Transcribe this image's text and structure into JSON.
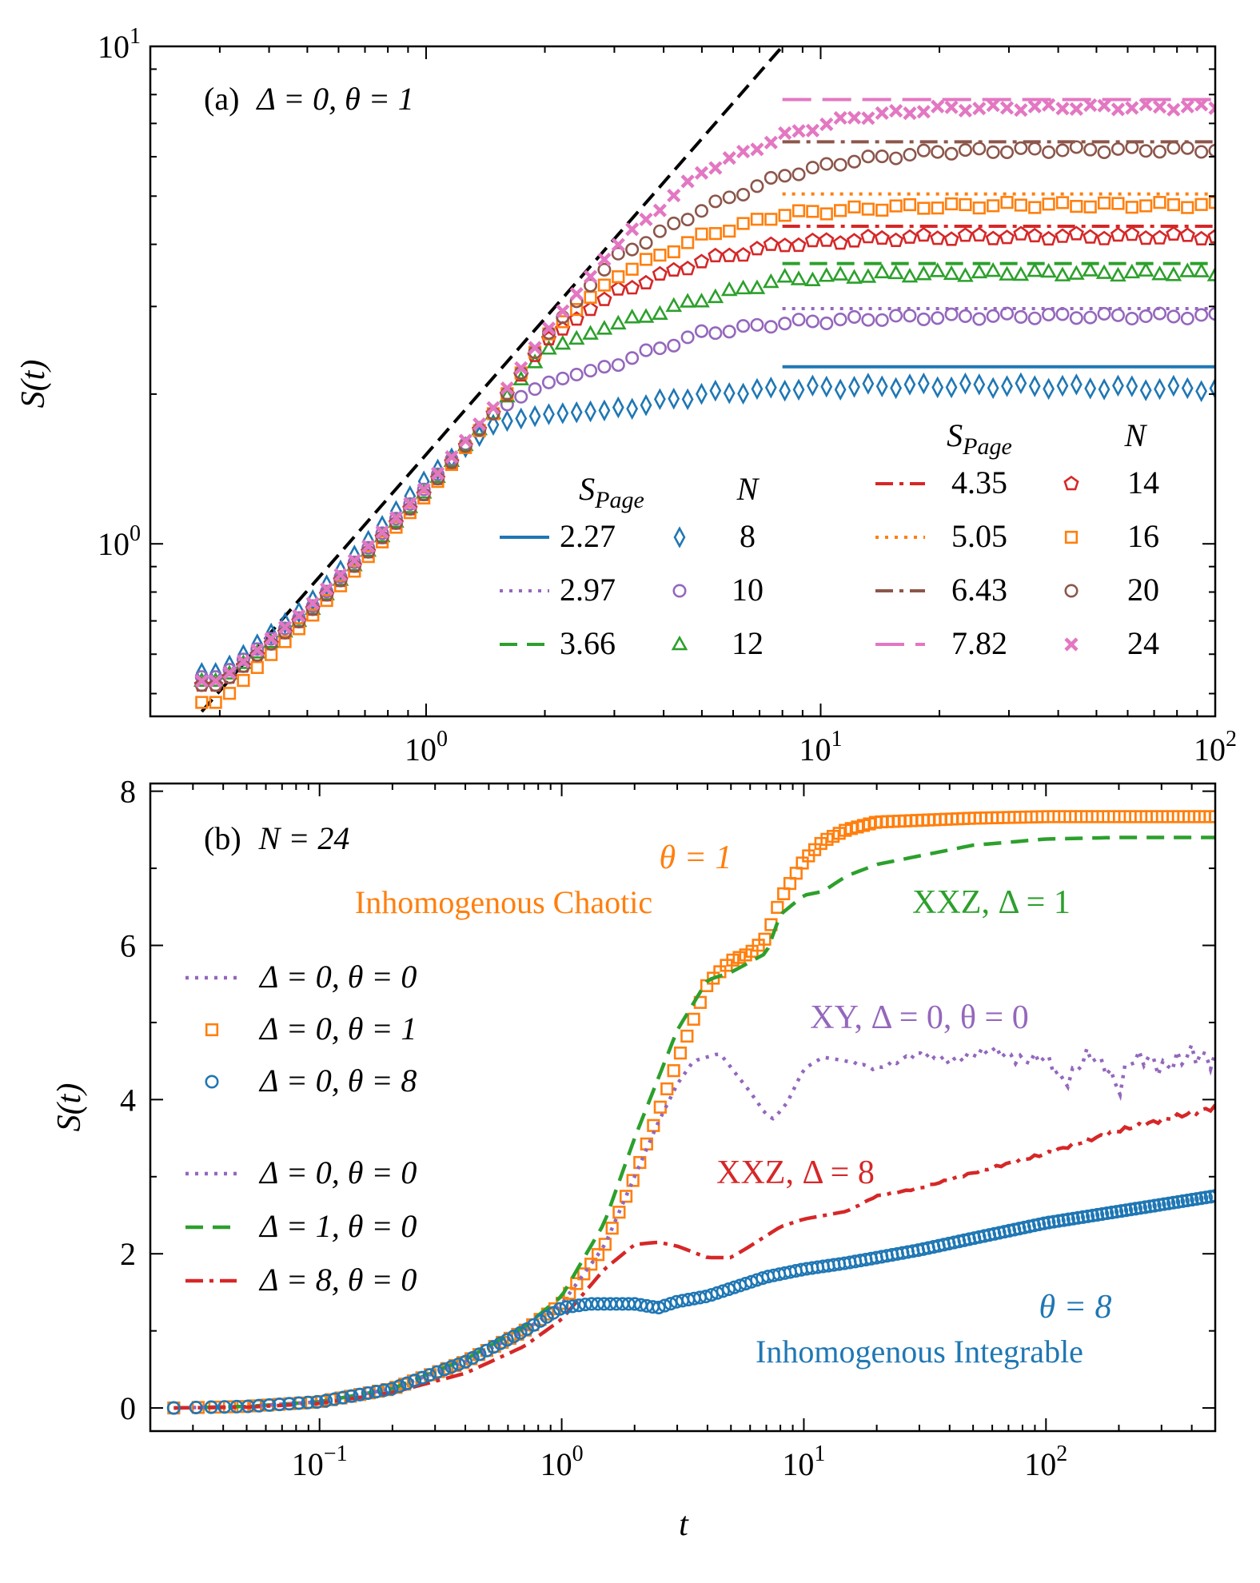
{
  "chart_data": [
    {
      "type": "scatter",
      "panel": "a",
      "title": "(a) Δ = 0, θ = 1",
      "title_parts": {
        "prefix": "(a)",
        "math": "Δ = 0, θ = 1"
      },
      "xlabel": "",
      "ylabel": "S(t)",
      "xscale": "log",
      "yscale": "log",
      "xlim": [
        0.2,
        100
      ],
      "ylim": [
        0.45,
        10
      ],
      "xticks": [
        {
          "base": "10",
          "exp": "0",
          "value": 1
        },
        {
          "base": "10",
          "exp": "1",
          "value": 10
        },
        {
          "base": "10",
          "exp": "2",
          "value": 100
        }
      ],
      "yticks": [
        {
          "base": "10",
          "exp": "0",
          "value": 1
        },
        {
          "base": "10",
          "exp": "1",
          "value": 10
        }
      ],
      "grid": false,
      "legend_placement": "bottom-right",
      "legend_headers": {
        "page": "S",
        "page_sub": "Page",
        "n": "N"
      },
      "guide_line": {
        "style": "dashed",
        "color": "#000000",
        "x": [
          0.27,
          8.0
        ],
        "y": [
          0.46,
          10.0
        ]
      },
      "series": [
        {
          "N": "8",
          "page": "2.27",
          "page_value": 2.27,
          "color": "#1f77b4",
          "marker": "diamond",
          "line": "solid",
          "x": [
            0.3,
            0.5,
            1.0,
            1.5,
            2.0,
            3.0,
            5.0,
            8.0,
            15.0,
            30.0,
            60.0,
            100.0
          ],
          "y": [
            0.55,
            0.75,
            1.35,
            1.75,
            1.82,
            1.86,
            2.0,
            2.05,
            2.08,
            2.08,
            2.06,
            2.05
          ]
        },
        {
          "N": "10",
          "page": "2.97",
          "page_value": 2.97,
          "color": "#9467bd",
          "marker": "circle",
          "line": "dotted",
          "x": [
            0.3,
            0.5,
            1.0,
            1.5,
            2.0,
            3.0,
            5.0,
            8.0,
            15.0,
            30.0,
            60.0,
            100.0
          ],
          "y": [
            0.54,
            0.73,
            1.3,
            1.85,
            2.1,
            2.3,
            2.65,
            2.78,
            2.85,
            2.87,
            2.87,
            2.87
          ]
        },
        {
          "N": "12",
          "page": "3.66",
          "page_value": 3.66,
          "color": "#2ca02c",
          "marker": "triangle",
          "line": "dashed",
          "x": [
            0.3,
            0.5,
            1.0,
            1.5,
            2.0,
            3.0,
            5.0,
            8.0,
            15.0,
            30.0,
            60.0,
            100.0
          ],
          "y": [
            0.53,
            0.72,
            1.28,
            1.85,
            2.45,
            2.75,
            3.1,
            3.4,
            3.48,
            3.5,
            3.5,
            3.5
          ]
        },
        {
          "N": "14",
          "page": "4.35",
          "page_value": 4.35,
          "color": "#d62728",
          "marker": "pentagon",
          "line": "dashdot",
          "x": [
            0.3,
            0.5,
            1.0,
            1.5,
            2.0,
            3.0,
            5.0,
            8.0,
            15.0,
            30.0,
            60.0,
            100.0
          ],
          "y": [
            0.52,
            0.72,
            1.27,
            1.85,
            2.55,
            3.2,
            3.7,
            4.0,
            4.12,
            4.15,
            4.15,
            4.15
          ]
        },
        {
          "N": "16",
          "page": "5.05",
          "page_value": 5.05,
          "color": "#ff7f0e",
          "marker": "square",
          "line": "dotted",
          "x": [
            0.3,
            0.5,
            1.0,
            1.5,
            2.0,
            3.0,
            5.0,
            8.0,
            15.0,
            30.0,
            60.0,
            100.0
          ],
          "y": [
            0.48,
            0.7,
            1.25,
            1.85,
            2.6,
            3.45,
            4.15,
            4.6,
            4.75,
            4.8,
            4.8,
            4.8
          ]
        },
        {
          "N": "20",
          "page": "6.43",
          "page_value": 6.43,
          "color": "#8c564b",
          "marker": "circle",
          "line": "dashdot",
          "x": [
            0.3,
            0.5,
            1.0,
            1.5,
            2.0,
            3.0,
            5.0,
            8.0,
            12.0,
            20.0,
            40.0,
            100.0
          ],
          "y": [
            0.52,
            0.72,
            1.27,
            1.85,
            2.6,
            3.75,
            4.7,
            5.5,
            5.9,
            6.15,
            6.2,
            6.2
          ]
        },
        {
          "N": "24",
          "page": "7.82",
          "page_value": 7.82,
          "color": "#e377c2",
          "marker": "x",
          "line": "longdash",
          "x": [
            0.3,
            0.5,
            1.0,
            1.5,
            2.0,
            3.0,
            5.0,
            8.0,
            12.0,
            20.0,
            40.0,
            100.0
          ],
          "y": [
            0.53,
            0.74,
            1.3,
            1.9,
            2.65,
            3.95,
            5.6,
            6.6,
            7.2,
            7.5,
            7.55,
            7.55
          ]
        }
      ]
    },
    {
      "type": "line",
      "panel": "b",
      "title": "(b) N = 24",
      "title_parts": {
        "prefix": "(b)",
        "math": "N = 24"
      },
      "xlabel": "t",
      "ylabel": "S(t)",
      "xscale": "log",
      "yscale": "linear",
      "xlim": [
        0.02,
        500
      ],
      "ylim": [
        -0.3,
        8.1
      ],
      "xticks": [
        {
          "base": "10",
          "exp": "−1",
          "value": 0.1
        },
        {
          "base": "10",
          "exp": "0",
          "value": 1
        },
        {
          "base": "10",
          "exp": "1",
          "value": 10
        },
        {
          "base": "10",
          "exp": "2",
          "value": 100
        }
      ],
      "yticks": [
        {
          "label": "0",
          "value": 0
        },
        {
          "label": "2",
          "value": 2
        },
        {
          "label": "4",
          "value": 4
        },
        {
          "label": "6",
          "value": 6
        },
        {
          "label": "8",
          "value": 8
        }
      ],
      "grid": false,
      "legend_placement": "left",
      "legend_entries": [
        {
          "label": "Δ = 0,  θ = 0",
          "color": "#9467bd",
          "style": "dotted"
        },
        {
          "label": "Δ = 0,  θ = 1",
          "color": "#ff7f0e",
          "style": "square"
        },
        {
          "label": "Δ = 0,  θ = 8",
          "color": "#1f77b4",
          "style": "circle"
        },
        {
          "label": "Δ = 0,  θ = 0",
          "color": "#9467bd",
          "style": "dotted"
        },
        {
          "label": "Δ = 1,  θ = 0",
          "color": "#2ca02c",
          "style": "dashed"
        },
        {
          "label": "Δ = 8,  θ = 0",
          "color": "#d62728",
          "style": "dashdot"
        }
      ],
      "annotations": [
        {
          "text": "θ = 1",
          "color": "#ff7f0e"
        },
        {
          "text": "Inhomogenous Chaotic",
          "color": "#ff7f0e"
        },
        {
          "text": "XXZ, Δ = 1",
          "color": "#2ca02c"
        },
        {
          "text": "XY, Δ = 0, θ = 0",
          "color": "#9467bd"
        },
        {
          "text": "XXZ, Δ = 8",
          "color": "#d62728"
        },
        {
          "text": "θ = 8",
          "color": "#1f77b4"
        },
        {
          "text": "Inhomogenous Integrable",
          "color": "#1f77b4"
        }
      ],
      "series": [
        {
          "id": "chaotic",
          "color": "#ff7f0e",
          "style": "square",
          "x": [
            0.025,
            0.05,
            0.1,
            0.2,
            0.4,
            0.7,
            1.0,
            1.5,
            2.0,
            3.0,
            4.0,
            5.0,
            6.0,
            7.0,
            8.0,
            10.0,
            12.0,
            15.0,
            20.0,
            50.0,
            100.0,
            200.0,
            500.0
          ],
          "y": [
            0.0,
            0.02,
            0.08,
            0.25,
            0.6,
            1.0,
            1.35,
            2.1,
            3.0,
            4.5,
            5.5,
            5.8,
            5.9,
            6.1,
            6.6,
            7.1,
            7.35,
            7.5,
            7.6,
            7.65,
            7.67,
            7.67,
            7.67
          ]
        },
        {
          "id": "xxz1",
          "color": "#2ca02c",
          "style": "dashed",
          "x": [
            0.025,
            0.05,
            0.1,
            0.2,
            0.4,
            0.7,
            1.0,
            1.5,
            2.0,
            3.0,
            4.0,
            5.0,
            7.0,
            8.0,
            10.0,
            12.0,
            15.0,
            20.0,
            50.0,
            100.0,
            200.0,
            500.0
          ],
          "y": [
            0.0,
            0.02,
            0.08,
            0.25,
            0.63,
            1.05,
            1.45,
            2.4,
            3.5,
            4.9,
            5.55,
            5.65,
            5.9,
            6.4,
            6.65,
            6.7,
            6.9,
            7.05,
            7.3,
            7.38,
            7.4,
            7.4
          ]
        },
        {
          "id": "xy",
          "color": "#9467bd",
          "style": "dotted",
          "x": [
            0.025,
            0.05,
            0.1,
            0.2,
            0.4,
            0.7,
            1.0,
            1.5,
            2.0,
            2.5,
            3.0,
            3.5,
            4.5,
            6.0,
            7.0,
            7.5,
            8.5,
            10.0,
            12.0,
            15.0,
            20.0,
            30.0,
            40.0,
            60.0,
            80.0,
            100.0,
            120.0,
            150.0,
            180.0,
            200.0,
            220.0,
            260.0,
            300.0,
            400.0,
            500.0
          ],
          "y": [
            0.0,
            0.02,
            0.08,
            0.25,
            0.6,
            1.0,
            1.35,
            2.1,
            3.0,
            3.7,
            4.2,
            4.5,
            4.6,
            4.1,
            3.8,
            3.75,
            3.95,
            4.4,
            4.55,
            4.5,
            4.4,
            4.6,
            4.5,
            4.65,
            4.5,
            4.55,
            4.2,
            4.6,
            4.4,
            4.1,
            4.5,
            4.55,
            4.4,
            4.6,
            4.5
          ]
        },
        {
          "id": "xxz8",
          "color": "#d62728",
          "style": "dashdot",
          "x": [
            0.025,
            0.05,
            0.1,
            0.2,
            0.4,
            0.7,
            1.0,
            1.5,
            2.0,
            2.5,
            3.0,
            4.0,
            5.0,
            6.0,
            8.0,
            10.0,
            15.0,
            20.0,
            30.0,
            50.0,
            100.0,
            200.0,
            500.0
          ],
          "y": [
            0.0,
            0.01,
            0.06,
            0.2,
            0.45,
            0.8,
            1.15,
            1.8,
            2.12,
            2.15,
            2.1,
            1.95,
            1.95,
            2.1,
            2.35,
            2.45,
            2.55,
            2.75,
            2.85,
            3.05,
            3.3,
            3.6,
            3.9
          ]
        },
        {
          "id": "integrable",
          "color": "#1f77b4",
          "style": "circle",
          "x": [
            0.025,
            0.05,
            0.1,
            0.2,
            0.4,
            0.7,
            1.0,
            1.3,
            1.7,
            2.0,
            2.5,
            3.0,
            4.0,
            5.0,
            7.0,
            10.0,
            15.0,
            20.0,
            30.0,
            50.0,
            100.0,
            200.0,
            500.0
          ],
          "y": [
            0.0,
            0.02,
            0.08,
            0.25,
            0.6,
            1.0,
            1.3,
            1.35,
            1.35,
            1.35,
            1.3,
            1.38,
            1.45,
            1.55,
            1.7,
            1.8,
            1.88,
            1.95,
            2.05,
            2.2,
            2.4,
            2.55,
            2.75
          ]
        }
      ]
    }
  ]
}
